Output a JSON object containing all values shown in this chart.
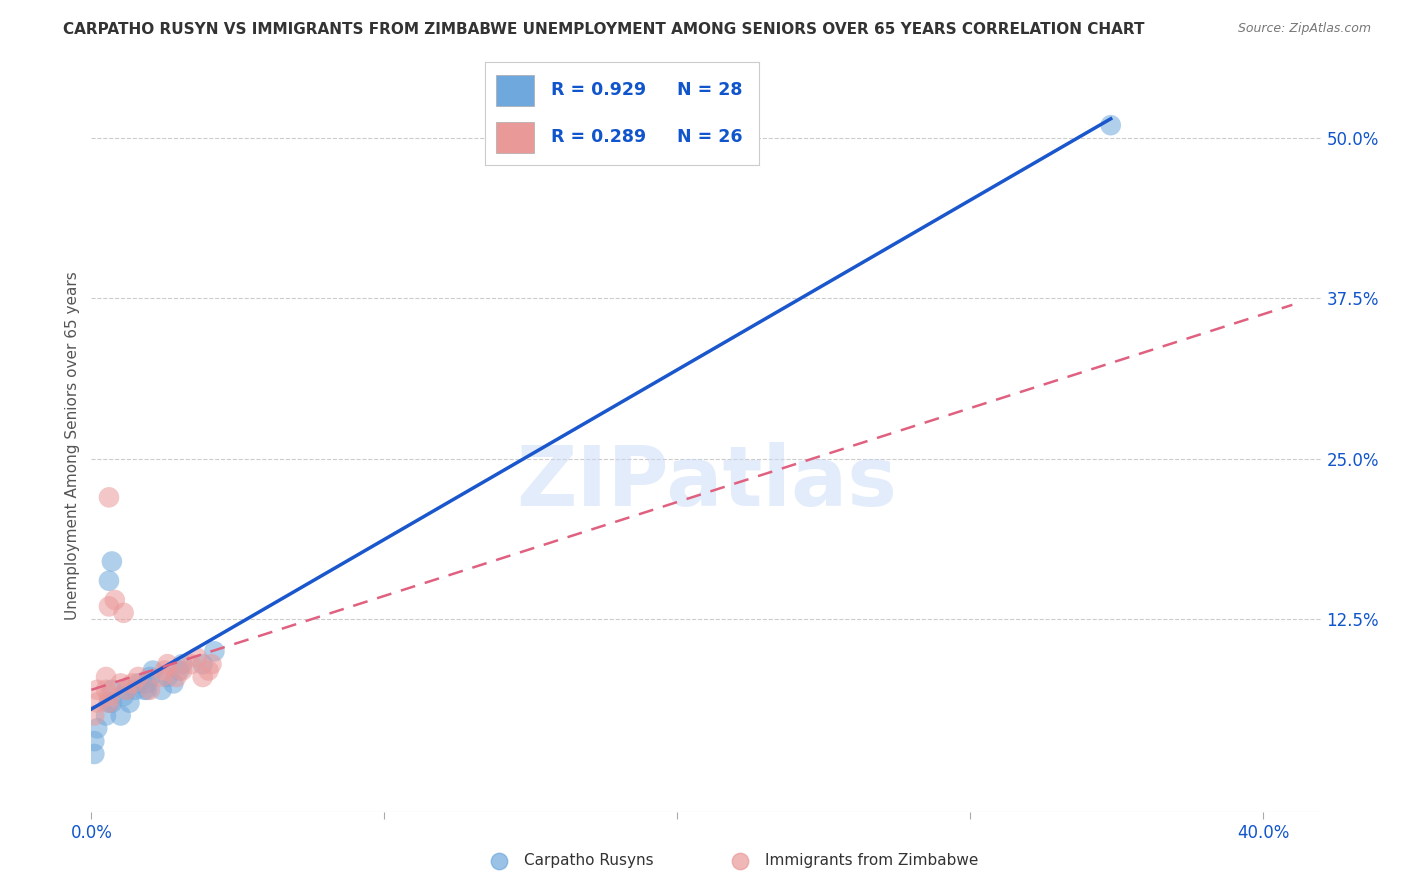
{
  "title": "CARPATHO RUSYN VS IMMIGRANTS FROM ZIMBABWE UNEMPLOYMENT AMONG SENIORS OVER 65 YEARS CORRELATION CHART",
  "source": "Source: ZipAtlas.com",
  "ylabel": "Unemployment Among Seniors over 65 years",
  "xlim": [
    0.0,
    0.42
  ],
  "ylim": [
    -0.025,
    0.545
  ],
  "xticks": [
    0.0,
    0.1,
    0.2,
    0.3,
    0.4
  ],
  "xtick_labels": [
    "0.0%",
    "",
    "",
    "",
    "40.0%"
  ],
  "ytick_labels_right": [
    "50.0%",
    "37.5%",
    "25.0%",
    "12.5%"
  ],
  "ytick_vals_right": [
    0.5,
    0.375,
    0.25,
    0.125
  ],
  "blue_color": "#6fa8dc",
  "pink_color": "#ea9999",
  "blue_line_color": "#1a56cc",
  "pink_line_color": "#e06080",
  "legend_R1": "R = 0.929",
  "legend_N1": "N = 28",
  "legend_R2": "R = 0.289",
  "legend_N2": "N = 26",
  "watermark": "ZIPatlas",
  "blue_scatter_x": [
    0.002,
    0.001,
    0.001,
    0.005,
    0.006,
    0.007,
    0.007,
    0.01,
    0.011,
    0.012,
    0.013,
    0.015,
    0.016,
    0.018,
    0.019,
    0.02,
    0.021,
    0.019,
    0.024,
    0.026,
    0.028,
    0.03,
    0.031,
    0.038,
    0.042,
    0.348,
    0.006,
    0.007
  ],
  "blue_scatter_y": [
    0.04,
    0.03,
    0.02,
    0.05,
    0.06,
    0.07,
    0.06,
    0.05,
    0.065,
    0.07,
    0.06,
    0.07,
    0.075,
    0.07,
    0.075,
    0.08,
    0.085,
    0.07,
    0.07,
    0.08,
    0.075,
    0.085,
    0.09,
    0.09,
    0.1,
    0.51,
    0.155,
    0.17
  ],
  "pink_scatter_x": [
    0.001,
    0.002,
    0.002,
    0.005,
    0.005,
    0.006,
    0.006,
    0.01,
    0.012,
    0.014,
    0.016,
    0.02,
    0.024,
    0.025,
    0.026,
    0.029,
    0.031,
    0.034,
    0.036,
    0.038,
    0.04,
    0.041,
    0.006,
    0.008,
    0.011,
    0.006
  ],
  "pink_scatter_y": [
    0.05,
    0.06,
    0.07,
    0.07,
    0.08,
    0.06,
    0.065,
    0.075,
    0.07,
    0.075,
    0.08,
    0.07,
    0.08,
    0.085,
    0.09,
    0.08,
    0.085,
    0.09,
    0.095,
    0.08,
    0.085,
    0.09,
    0.135,
    0.14,
    0.13,
    0.22
  ],
  "blue_line_x0": 0.0,
  "blue_line_y0": 0.055,
  "blue_line_x1": 0.348,
  "blue_line_y1": 0.515,
  "pink_line_x0": 0.0,
  "pink_line_y0": 0.07,
  "pink_line_x1": 0.41,
  "pink_line_y1": 0.37,
  "grid_color": "#cccccc",
  "bg_color": "#ffffff",
  "title_fontsize": 11,
  "source_fontsize": 9
}
